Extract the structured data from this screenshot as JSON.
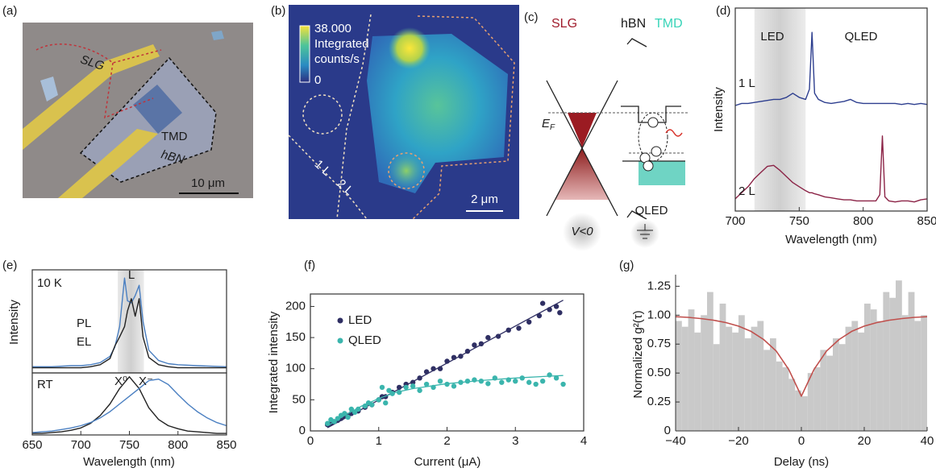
{
  "panels": {
    "a": {
      "label": "(a)",
      "texts": [
        "SLG",
        "TMD",
        "hBN"
      ],
      "scale_bar": "10 μm"
    },
    "b": {
      "label": "(b)",
      "colorbar": {
        "max": "38.000",
        "title": [
          "Integrated",
          "counts/s"
        ],
        "min": "0"
      },
      "layer_labels": [
        "1 L",
        "2 L"
      ],
      "scale_bar": "2 μm"
    },
    "c": {
      "label": "(c)",
      "materials": [
        "SLG",
        "hBN",
        "TMD"
      ],
      "fermi": "E",
      "fermi_sub": "F",
      "device": "QLED",
      "bias": "V<0"
    }
  },
  "chart_data": [
    {
      "type": "line",
      "panel_label": "(d)",
      "xlabel": "Wavelength (nm)",
      "ylabel": "Intensity",
      "xlim": [
        700,
        850
      ],
      "ylim": [
        0,
        10
      ],
      "xticks": [
        700,
        750,
        800,
        850
      ],
      "shade": [
        715,
        755
      ],
      "annotations": [
        "LED",
        "QLED"
      ],
      "x": [
        700,
        705,
        710,
        715,
        720,
        725,
        730,
        735,
        740,
        745,
        750,
        755,
        758,
        760,
        762,
        765,
        770,
        775,
        780,
        785,
        790,
        795,
        800,
        805,
        810,
        813,
        815,
        817,
        820,
        825,
        830,
        835,
        840,
        845,
        850
      ],
      "series": [
        {
          "name": "1 L",
          "color": "#2e3f8f",
          "values": [
            5.2,
            5.3,
            5.3,
            5.35,
            5.4,
            5.45,
            5.5,
            5.5,
            5.6,
            5.8,
            5.6,
            5.5,
            6.0,
            8.8,
            5.8,
            5.5,
            5.35,
            5.3,
            5.35,
            5.4,
            5.5,
            5.35,
            5.3,
            5.3,
            5.3,
            5.3,
            5.3,
            5.3,
            5.3,
            5.3,
            5.25,
            5.3,
            5.25,
            5.3,
            5.25
          ]
        },
        {
          "name": "2 L",
          "color": "#8b2346",
          "values": [
            0.6,
            0.9,
            1.2,
            1.6,
            1.9,
            2.2,
            2.25,
            2.0,
            1.7,
            1.4,
            1.2,
            1.0,
            0.9,
            0.9,
            0.85,
            0.8,
            0.7,
            0.65,
            0.6,
            0.55,
            0.55,
            0.5,
            0.5,
            0.5,
            0.5,
            0.8,
            3.7,
            0.7,
            0.5,
            0.45,
            0.5,
            0.5,
            0.45,
            0.55,
            0.6
          ]
        }
      ]
    },
    {
      "type": "line",
      "panel_label": "(e)",
      "ylabel": "Intensity",
      "xlim": [
        650,
        850
      ],
      "ylim": [
        0,
        10
      ],
      "shade": [
        738,
        765
      ],
      "annotations": [
        "L",
        "10 K"
      ],
      "x": [
        650,
        670,
        690,
        700,
        710,
        720,
        730,
        735,
        740,
        745,
        748,
        752,
        756,
        760,
        764,
        770,
        780,
        790,
        800,
        820,
        850
      ],
      "series": [
        {
          "name": "PL",
          "color": "#4a7fc1",
          "values": [
            0.6,
            0.6,
            0.7,
            0.7,
            0.8,
            1.0,
            1.6,
            2.5,
            4.5,
            9.2,
            7,
            6.8,
            7.5,
            8.5,
            5,
            2.2,
            1.2,
            0.9,
            0.8,
            0.7,
            0.6
          ]
        },
        {
          "name": "EL",
          "color": "#222222",
          "values": [
            0.5,
            0.5,
            0.5,
            0.5,
            0.6,
            0.8,
            1.4,
            2.6,
            3.5,
            4.5,
            6,
            7.2,
            5.5,
            7.2,
            3.5,
            1.5,
            0.8,
            0.6,
            0.5,
            0.5,
            0.5
          ]
        }
      ]
    },
    {
      "type": "line",
      "xlabel": "Wavelength (nm)",
      "xlim": [
        650,
        850
      ],
      "ylim": [
        0,
        8
      ],
      "xticks": [
        650,
        700,
        750,
        800,
        850
      ],
      "annotations": [
        "RT"
      ],
      "x": [
        650,
        660,
        670,
        680,
        690,
        700,
        710,
        720,
        730,
        740,
        750,
        760,
        770,
        780,
        790,
        800,
        810,
        820,
        830,
        840,
        850
      ],
      "series": [
        {
          "name": "X⁰",
          "color": "#222222",
          "values": [
            0.2,
            0.2,
            0.3,
            0.4,
            0.6,
            0.9,
            1.5,
            2.5,
            4,
            6,
            7.5,
            6,
            3.5,
            2,
            1.2,
            0.8,
            0.5,
            0.4,
            0.3,
            0.2,
            0.2
          ]
        },
        {
          "name": "X⁻",
          "color": "#4a7fc1",
          "values": [
            0.3,
            0.4,
            0.5,
            0.7,
            0.9,
            1.2,
            1.6,
            2.2,
            3,
            4,
            5,
            6,
            7,
            7.2,
            6.5,
            5.2,
            4,
            3,
            2.2,
            1.6,
            1.2
          ]
        }
      ]
    },
    {
      "type": "scatter",
      "panel_label": "(f)",
      "xlabel": "Current (μA)",
      "ylabel": "Integrated intensity",
      "xlim": [
        0,
        4
      ],
      "ylim": [
        0,
        220
      ],
      "xticks": [
        0,
        1,
        2,
        3,
        4
      ],
      "yticks": [
        0,
        50,
        100,
        150,
        200
      ],
      "series": [
        {
          "name": "LED",
          "color": "#2f2f63",
          "x": [
            0.25,
            0.3,
            0.35,
            0.4,
            0.45,
            0.5,
            0.55,
            0.6,
            0.7,
            0.8,
            0.9,
            1.0,
            1.05,
            1.1,
            1.2,
            1.3,
            1.4,
            1.5,
            1.6,
            1.7,
            1.8,
            1.9,
            2.0,
            2.1,
            2.2,
            2.3,
            2.4,
            2.5,
            2.6,
            2.75,
            2.9,
            3.05,
            3.2,
            3.35,
            3.4,
            3.5,
            3.6,
            3.65
          ],
          "values": [
            10,
            12,
            15,
            17,
            20,
            24,
            25,
            28,
            32,
            38,
            42,
            50,
            55,
            55,
            62,
            70,
            75,
            78,
            85,
            95,
            100,
            100,
            112,
            118,
            120,
            128,
            138,
            140,
            150,
            152,
            162,
            165,
            175,
            185,
            205,
            195,
            200,
            190
          ],
          "fit": {
            "x": [
              0.25,
              3.7
            ],
            "values": [
              5,
              210
            ]
          }
        },
        {
          "name": "QLED",
          "color": "#3bb5ad",
          "x": [
            0.25,
            0.3,
            0.35,
            0.4,
            0.45,
            0.5,
            0.55,
            0.6,
            0.65,
            0.7,
            0.8,
            0.85,
            0.9,
            1.0,
            1.05,
            1.1,
            1.15,
            1.2,
            1.3,
            1.4,
            1.5,
            1.6,
            1.7,
            1.8,
            1.9,
            2.0,
            2.1,
            2.2,
            2.3,
            2.4,
            2.5,
            2.6,
            2.7,
            2.8,
            2.9,
            3.0,
            3.1,
            3.2,
            3.3,
            3.4,
            3.5,
            3.6,
            3.7
          ],
          "values": [
            12,
            18,
            15,
            20,
            25,
            28,
            22,
            35,
            30,
            35,
            40,
            45,
            42,
            50,
            70,
            45,
            65,
            60,
            62,
            70,
            72,
            65,
            75,
            70,
            80,
            75,
            72,
            78,
            80,
            82,
            80,
            76,
            85,
            78,
            82,
            80,
            85,
            78,
            75,
            80,
            90,
            85,
            75
          ],
          "fit": {
            "x": [
              0.25,
              0.5,
              0.75,
              1,
              1.25,
              1.5,
              2,
              2.5,
              3,
              3.5,
              3.7
            ],
            "values": [
              8,
              25,
              40,
              52,
              62,
              68,
              76,
              81,
              85,
              88,
              89
            ]
          }
        }
      ]
    },
    {
      "type": "histogram",
      "panel_label": "(g)",
      "xlabel": "Delay (ns)",
      "ylabel": "Normalized g²(τ)",
      "xlim": [
        -40,
        40
      ],
      "ylim": [
        0,
        1.35
      ],
      "xticks": [
        {
          "value": -40,
          "label": "−40"
        },
        {
          "value": -20,
          "label": "−20"
        },
        0,
        20,
        40
      ],
      "yticks": [
        0,
        0.25,
        {
          "value": 0.5,
          "label": "0.50"
        },
        0.75,
        {
          "value": 1,
          "label": "1.00"
        },
        1.25
      ],
      "color": "#c9c9c9",
      "bins": [
        -40,
        -38,
        -36,
        -34,
        -32,
        -30,
        -28,
        -26,
        -24,
        -22,
        -20,
        -18,
        -16,
        -14,
        -12,
        -10,
        -8,
        -6,
        -4,
        -2,
        0,
        2,
        4,
        6,
        8,
        10,
        12,
        14,
        16,
        18,
        20,
        22,
        24,
        26,
        28,
        30,
        32,
        34,
        36,
        38,
        40
      ],
      "values": [
        0.95,
        0.9,
        1.05,
        0.85,
        1.0,
        1.2,
        0.75,
        1.1,
        0.9,
        0.85,
        1.0,
        0.8,
        0.9,
        0.95,
        0.7,
        0.8,
        0.6,
        0.55,
        0.45,
        0.35,
        0.3,
        0.5,
        0.55,
        0.7,
        0.65,
        0.8,
        0.75,
        0.9,
        0.95,
        0.85,
        1.1,
        1.05,
        0.95,
        1.2,
        1.15,
        1.3,
        1.0,
        1.2,
        0.95,
        1.0
      ],
      "fit": {
        "color": "#c0504d",
        "x": [
          -40,
          -36,
          -32,
          -28,
          -24,
          -20,
          -16,
          -12,
          -8,
          -4,
          0,
          4,
          8,
          12,
          16,
          20,
          24,
          28,
          32,
          36,
          40
        ],
        "values": [
          0.987,
          0.981,
          0.971,
          0.957,
          0.936,
          0.905,
          0.86,
          0.79,
          0.69,
          0.53,
          0.3,
          0.53,
          0.69,
          0.79,
          0.86,
          0.905,
          0.936,
          0.957,
          0.971,
          0.981,
          0.987
        ]
      }
    }
  ]
}
